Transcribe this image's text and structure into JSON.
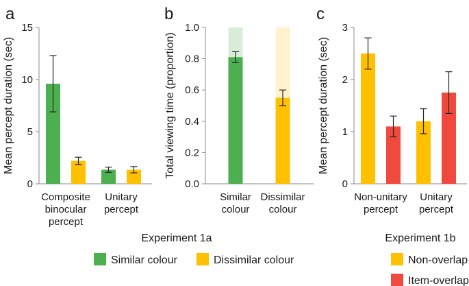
{
  "colors": {
    "similar": "#4caf50",
    "dissimilar": "#ffc000",
    "item_overlap": "#f04a3e",
    "similar_light": "#d9eed9",
    "dissimilar_light": "#fff2cc",
    "axis": "#888888",
    "text": "#1a1a1a"
  },
  "legend_a": {
    "title": "Experiment 1a",
    "items": [
      {
        "label": "Similar colour",
        "color": "#4caf50"
      },
      {
        "label": "Dissimilar colour",
        "color": "#ffc000"
      }
    ]
  },
  "legend_b": {
    "title": "Experiment 1b",
    "items": [
      {
        "label": "Non-overlap",
        "color": "#ffc000"
      },
      {
        "label": "Item-overlap",
        "color": "#f04a3e"
      }
    ]
  },
  "chart_data": [
    {
      "panel": "a",
      "type": "bar",
      "ylabel": "Mean percept duration (sec)",
      "ylim": [
        0,
        15
      ],
      "yticks": [
        0,
        5,
        10,
        15
      ],
      "categories": [
        [
          "Composite",
          "binocular",
          "percept"
        ],
        [
          "Unitary",
          "percept"
        ]
      ],
      "series": [
        {
          "name": "Similar colour",
          "color": "#4caf50",
          "values": [
            9.6,
            1.35
          ],
          "errors": [
            2.7,
            0.25
          ]
        },
        {
          "name": "Dissimilar colour",
          "color": "#ffc000",
          "values": [
            2.2,
            1.35
          ],
          "errors": [
            0.35,
            0.3
          ]
        }
      ]
    },
    {
      "panel": "b",
      "type": "bar",
      "ylabel": "Total viewing time (proportion)",
      "ylim": [
        0,
        1.0
      ],
      "yticks": [
        "0.0",
        "0.2",
        "0.4",
        "0.6",
        "0.8",
        "1.0"
      ],
      "categories": [
        [
          "Similar",
          "colour"
        ],
        [
          "Dissimilar",
          "colour"
        ]
      ],
      "stacked_background": 1.0,
      "series": [
        {
          "values": [
            0.81,
            0.55
          ],
          "errors": [
            0.035,
            0.05
          ],
          "colors": [
            "#4caf50",
            "#ffc000"
          ],
          "background_colors": [
            "#d9eed9",
            "#fff2cc"
          ]
        }
      ]
    },
    {
      "panel": "c",
      "type": "bar",
      "ylabel": "Mean percept duration (sec)",
      "ylim": [
        0,
        3
      ],
      "yticks": [
        0,
        1,
        2,
        3
      ],
      "categories": [
        [
          "Non-unitary",
          "percept"
        ],
        [
          "Unitary",
          "percept"
        ]
      ],
      "series": [
        {
          "name": "Non-overlap",
          "color": "#ffc000",
          "values": [
            2.5,
            1.2
          ],
          "errors": [
            0.3,
            0.24
          ]
        },
        {
          "name": "Item-overlap",
          "color": "#f04a3e",
          "values": [
            1.1,
            1.75
          ],
          "errors": [
            0.2,
            0.4
          ]
        }
      ]
    }
  ]
}
